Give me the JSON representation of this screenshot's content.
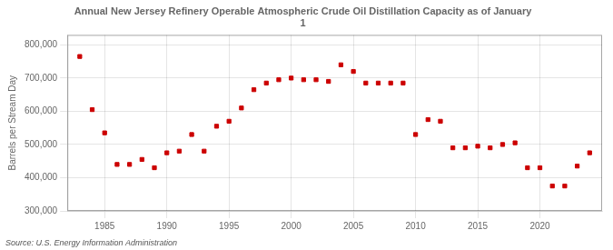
{
  "chart_data": {
    "type": "scatter",
    "title": "Annual New Jersey Refinery Operable Atmospheric Crude Oil Distillation Capacity as of January\n1",
    "ylabel": "Barrels per Stream Day",
    "annotations": [
      "Source: U.S. Energy Information Administration"
    ],
    "color": "#cc0000",
    "marker": "square",
    "grid": true,
    "x": [
      1983,
      1984,
      1985,
      1986,
      1987,
      1988,
      1989,
      1990,
      1991,
      1992,
      1993,
      1994,
      1995,
      1996,
      1997,
      1998,
      1999,
      2000,
      2001,
      2002,
      2003,
      2004,
      2005,
      2006,
      2007,
      2008,
      2009,
      2010,
      2011,
      2012,
      2013,
      2014,
      2015,
      2016,
      2017,
      2018,
      2019,
      2020,
      2021,
      2022,
      2023,
      2024
    ],
    "values": [
      765000,
      605000,
      535000,
      440000,
      440000,
      455000,
      430000,
      475000,
      480000,
      530000,
      480000,
      555000,
      570000,
      610000,
      665000,
      685000,
      695000,
      700000,
      695000,
      695000,
      690000,
      740000,
      720000,
      685000,
      685000,
      685000,
      685000,
      530000,
      575000,
      570000,
      490000,
      490000,
      495000,
      490000,
      500000,
      505000,
      430000,
      430000,
      375000,
      375000,
      435000,
      475000
    ],
    "xlim": [
      1982,
      2025
    ],
    "xticks": [
      1985,
      1990,
      1995,
      2000,
      2005,
      2010,
      2015,
      2020
    ],
    "ylim": [
      300000,
      830000
    ],
    "yticks": [
      {
        "value": 300000,
        "label": "300,000"
      },
      {
        "value": 400000,
        "label": "400,000"
      },
      {
        "value": 500000,
        "label": "500,000"
      },
      {
        "value": 600000,
        "label": "600,000"
      },
      {
        "value": 700000,
        "label": "700,000"
      },
      {
        "value": 800000,
        "label": "800,000"
      }
    ]
  }
}
